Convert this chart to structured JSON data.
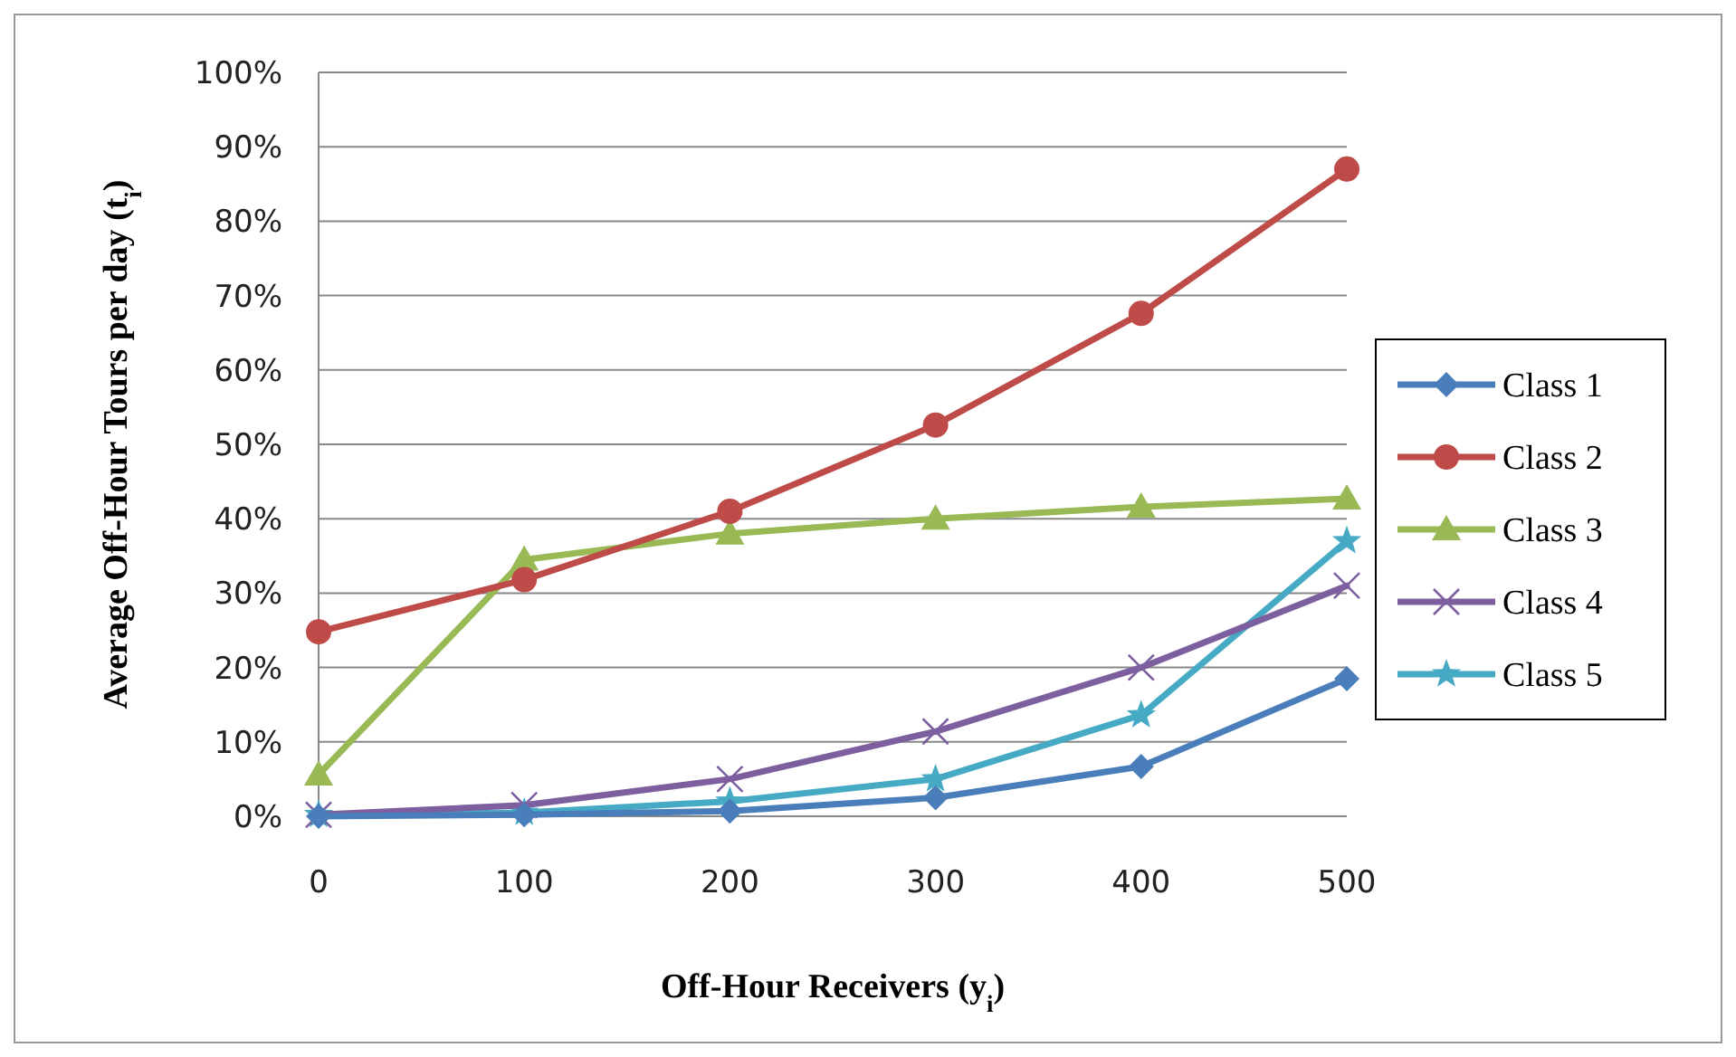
{
  "chart_data": {
    "type": "line",
    "xlabel": "Off-Hour Receivers (y$_{i}$)",
    "ylabel": "Average Off-Hour Tours per day (t$_{i}$)",
    "categories": [
      "0",
      "100",
      "200",
      "300",
      "400",
      "500"
    ],
    "ylim": [
      0,
      100
    ],
    "yticks": [
      {
        "value": 0,
        "label": "0%"
      },
      {
        "value": 10,
        "label": "10%"
      },
      {
        "value": 20,
        "label": "20%"
      },
      {
        "value": 30,
        "label": "30%"
      },
      {
        "value": 40,
        "label": "40%"
      },
      {
        "value": 50,
        "label": "50%"
      },
      {
        "value": 60,
        "label": "60%"
      },
      {
        "value": 70,
        "label": "70%"
      },
      {
        "value": 80,
        "label": "80%"
      },
      {
        "value": 90,
        "label": "90%"
      },
      {
        "value": 100,
        "label": "100%"
      }
    ],
    "grid": "y",
    "legend": "right",
    "line_style": "solid",
    "series": [
      {
        "name": "Class 1",
        "color": "#4a7ebb",
        "marker": "diamond",
        "values": [
          0,
          0.2,
          0.7,
          2.5,
          6.7,
          18.5
        ]
      },
      {
        "name": "Class 2",
        "color": "#be4b48",
        "marker": "circle",
        "values": [
          24.8,
          31.8,
          41,
          52.6,
          67.6,
          87
        ]
      },
      {
        "name": "Class 3",
        "color": "#98b954",
        "marker": "triangle",
        "values": [
          5.6,
          34.5,
          38,
          40,
          41.6,
          42.7
        ]
      },
      {
        "name": "Class 4",
        "color": "#7d5fa0",
        "marker": "cross",
        "values": [
          0.2,
          1.5,
          5,
          11.4,
          20,
          31
        ]
      },
      {
        "name": "Class 5",
        "color": "#46aac5",
        "marker": "star",
        "values": [
          0.2,
          0.5,
          2,
          5,
          13.6,
          37
        ]
      }
    ]
  }
}
